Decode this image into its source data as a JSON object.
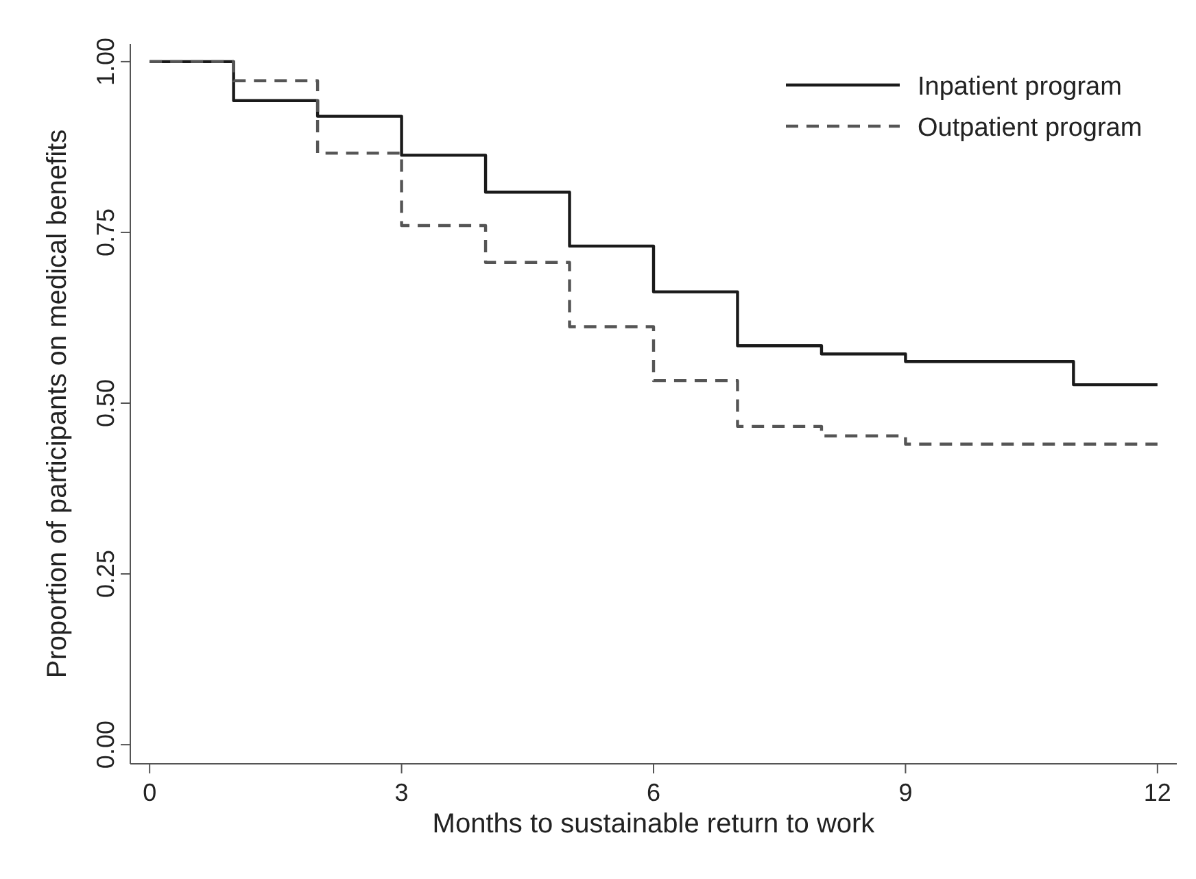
{
  "chart_data": {
    "type": "step",
    "xlabel": "Months to sustainable return to work",
    "ylabel": "Proportion of participants on medical benefits",
    "x": [
      0,
      1,
      2,
      3,
      4,
      5,
      6,
      7,
      8,
      9,
      10,
      11,
      12
    ],
    "series": [
      {
        "name": "Inpatient program",
        "color": "#1a1a1a",
        "line_style": "solid",
        "values": [
          1.0,
          0.943,
          0.92,
          0.863,
          0.809,
          0.73,
          0.663,
          0.584,
          0.572,
          0.561,
          0.561,
          0.527,
          0.527
        ]
      },
      {
        "name": "Outpatient program",
        "color": "#555555",
        "line_style": "dashed",
        "values": [
          1.0,
          0.972,
          0.866,
          0.76,
          0.706,
          0.612,
          0.533,
          0.466,
          0.452,
          0.44,
          0.44,
          0.44,
          0.44
        ]
      }
    ],
    "xlim": [
      -0.23,
      12.23
    ],
    "xticks": [
      0,
      3,
      6,
      9,
      12
    ],
    "ylim": [
      -0.028,
      1.026
    ],
    "yticks": [
      {
        "value": 0,
        "label": "0.00"
      },
      {
        "value": 0.25,
        "label": "0.25"
      },
      {
        "value": 0.5,
        "label": "0.50"
      },
      {
        "value": 0.75,
        "label": "0.75"
      },
      {
        "value": 1,
        "label": "1.00"
      }
    ],
    "grid": false,
    "legend": "top right"
  }
}
